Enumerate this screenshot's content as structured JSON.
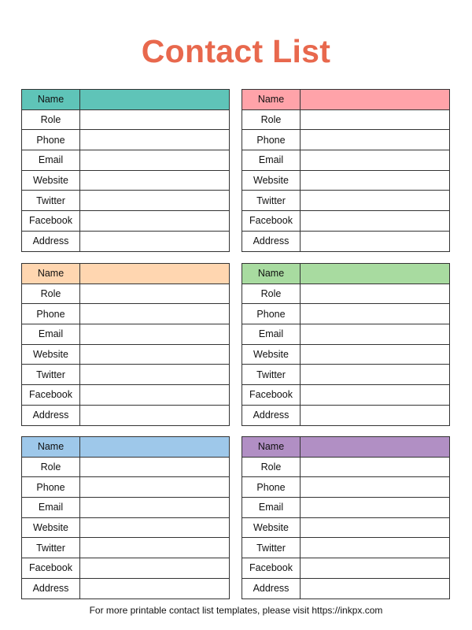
{
  "title": "Contact List",
  "fields": [
    "Name",
    "Role",
    "Phone",
    "Email",
    "Website",
    "Twitter",
    "Facebook",
    "Address"
  ],
  "cards": [
    {
      "header_color": "#5fc4b8"
    },
    {
      "header_color": "#ffa3a9"
    },
    {
      "header_color": "#ffd6b0"
    },
    {
      "header_color": "#a8dba0"
    },
    {
      "header_color": "#9ec8ea"
    },
    {
      "header_color": "#b18fc4"
    }
  ],
  "footer": "For more printable contact list templates, please visit https://inkpx.com"
}
